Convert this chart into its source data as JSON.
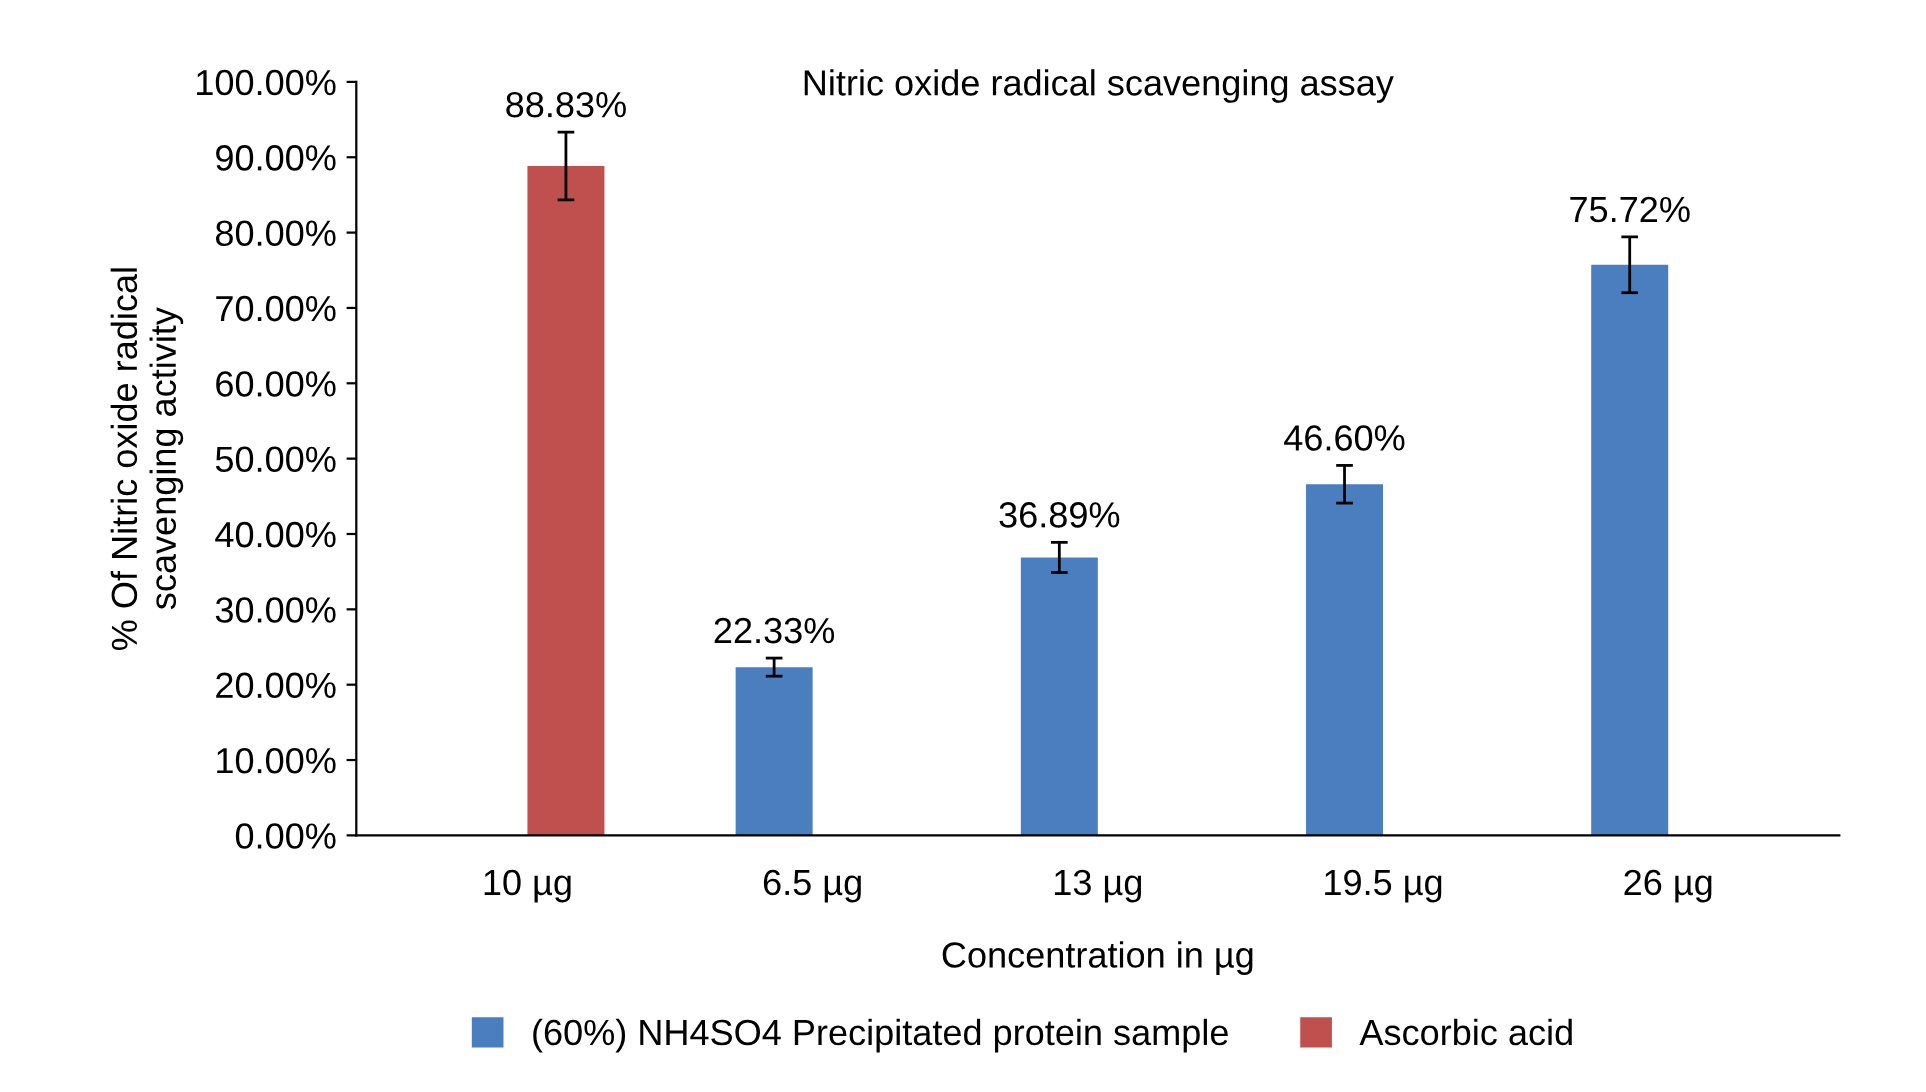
{
  "chart_data": {
    "type": "bar",
    "title": "Nitric oxide radical scavenging assay",
    "xlabel": "Concentration in µg",
    "ylabel": "% Of Nitric oxide radical\nscavenging activity",
    "categories": [
      "10 µg",
      "6.5 µg",
      "13 µg",
      "19.5 µg",
      "26 µg"
    ],
    "series": [
      {
        "name": "(60%) NH4SO4 Precipitated protein sample",
        "color": "#4a7ebf",
        "values": [
          null,
          22.33,
          36.89,
          46.6,
          75.72
        ],
        "errors": [
          null,
          1.2,
          2,
          2.5,
          3.7
        ],
        "value_labels": [
          null,
          "22.33%",
          "36.89%",
          "46.60%",
          "75.72%"
        ]
      },
      {
        "name": "Ascorbic acid",
        "color": "#c0504d",
        "values": [
          88.83,
          null,
          null,
          null,
          null
        ],
        "errors": [
          4.5,
          null,
          null,
          null,
          null
        ],
        "value_labels": [
          "88.83%",
          null,
          null,
          null,
          null
        ]
      }
    ],
    "ylim": [
      0,
      100
    ],
    "yticks": [
      {
        "value": 0,
        "label": "0.00%"
      },
      {
        "value": 10,
        "label": "10.00%"
      },
      {
        "value": 20,
        "label": "20.00%"
      },
      {
        "value": 30,
        "label": "30.00%"
      },
      {
        "value": 40,
        "label": "40.00%"
      },
      {
        "value": 50,
        "label": "50.00%"
      },
      {
        "value": 60,
        "label": "60.00%"
      },
      {
        "value": 70,
        "label": "70.00%"
      },
      {
        "value": 80,
        "label": "80.00%"
      },
      {
        "value": 90,
        "label": "90.00%"
      },
      {
        "value": 100,
        "label": "100.00%"
      }
    ],
    "grid": false,
    "legend": "bottom"
  }
}
